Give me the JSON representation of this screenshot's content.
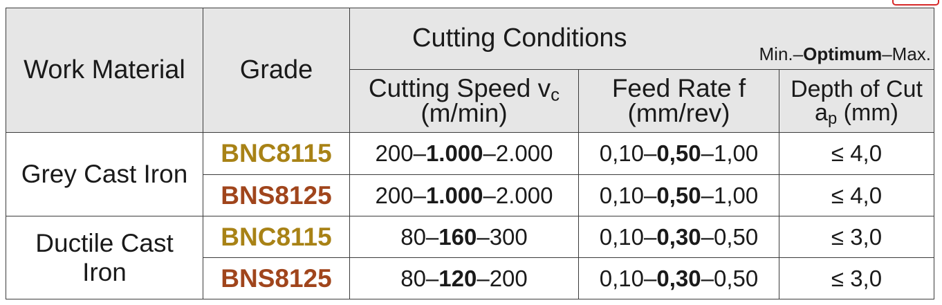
{
  "header": {
    "work_material": "Work Material",
    "grade": "Grade",
    "cutting_conditions": "Cutting Conditions",
    "range_prefix": "Min.–",
    "range_optimum": "Optimum",
    "range_suffix": "–Max.",
    "cutting_speed_label": "Cutting Speed v",
    "cutting_speed_sub": "c",
    "cutting_speed_unit": "(m/min)",
    "feed_rate_label": "Feed Rate f",
    "feed_rate_unit": "(mm/rev)",
    "depth_label": "Depth of Cut",
    "depth_symbol": "a",
    "depth_sub": "p",
    "depth_unit": "(mm)"
  },
  "rows": [
    {
      "material": "Grey Cast Iron",
      "grades": [
        {
          "grade": "BNC8115",
          "grade_color": "#a88216",
          "speed_min": "200–",
          "speed_opt": "1.000",
          "speed_max": "–2.000",
          "feed_min": "0,10–",
          "feed_opt": "0,50",
          "feed_max": "–1,00",
          "depth": "≤ 4,0"
        },
        {
          "grade": "BNS8125",
          "grade_color": "#a0451c",
          "speed_min": "200–",
          "speed_opt": "1.000",
          "speed_max": "–2.000",
          "feed_min": "0,10–",
          "feed_opt": "0,50",
          "feed_max": "–1,00",
          "depth": "≤ 4,0"
        }
      ]
    },
    {
      "material_line1": "Ductile Cast",
      "material_line2": "Iron",
      "grades": [
        {
          "grade": "BNC8115",
          "grade_color": "#a88216",
          "speed_min": "80–",
          "speed_opt": "160",
          "speed_max": "–300",
          "feed_min": "0,10–",
          "feed_opt": "0,30",
          "feed_max": "–0,50",
          "depth": "≤ 3,0"
        },
        {
          "grade": "BNS8125",
          "grade_color": "#a0451c",
          "speed_min": "80–",
          "speed_opt": "120",
          "speed_max": "–200",
          "feed_min": "0,10–",
          "feed_opt": "0,30",
          "feed_max": "–0,50",
          "depth": "≤ 3,0"
        }
      ]
    }
  ]
}
